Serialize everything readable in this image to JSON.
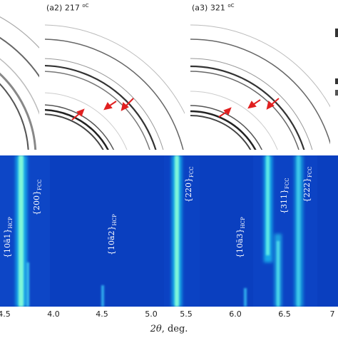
{
  "panels": {
    "a2": {
      "label": "(a2) 217 ",
      "unit": "oC"
    },
    "a3": {
      "label": "(a3) 321 ",
      "unit": "oC"
    }
  },
  "axis": {
    "ticks": [
      "4.5",
      "4.0",
      "4.5",
      "5.0",
      "5.5",
      "6.0",
      "6.5",
      "7"
    ],
    "xlabel_symbol": "2θ",
    "xlabel_rest": ", deg."
  },
  "peaks": {
    "p1011": {
      "hkl": "{10ā1}",
      "phase": "HCP"
    },
    "p200": {
      "hkl": "{200}",
      "phase": "FCC"
    },
    "p1012": {
      "hkl": "{10ā2}",
      "phase": "HCP"
    },
    "p220": {
      "hkl": "{220}",
      "phase": "FCC"
    },
    "p1013": {
      "hkl": "{10ā3}",
      "phase": "HCP"
    },
    "p311": {
      "hkl": "{311}",
      "phase": "FCC"
    },
    "p222": {
      "hkl": "{222}",
      "phase": "FCC"
    }
  },
  "colors": {
    "heatmap_bg": "#0a3fbf",
    "peak_bright": "#7ff7d9",
    "arrow": "#e02020"
  }
}
